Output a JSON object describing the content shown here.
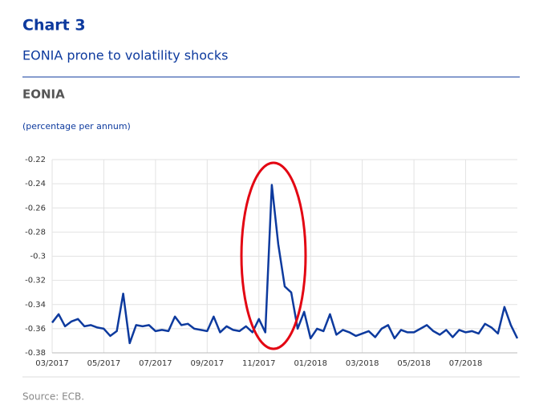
{
  "header": {
    "label": "Chart 3",
    "title": "EONIA prone to volatility shocks"
  },
  "chart_data": {
    "type": "line",
    "title": "EONIA",
    "subtitle": "(percentage per annum)",
    "categories": [
      "03/2017",
      null,
      null,
      null,
      null,
      null,
      null,
      null,
      "05/2017",
      null,
      null,
      null,
      null,
      null,
      null,
      null,
      "07/2017",
      null,
      null,
      null,
      null,
      null,
      null,
      null,
      "09/2017",
      null,
      null,
      null,
      null,
      null,
      null,
      null,
      "11/2017",
      null,
      null,
      null,
      null,
      null,
      null,
      null,
      "01/2018",
      null,
      null,
      null,
      null,
      null,
      null,
      null,
      "03/2018",
      null,
      null,
      null,
      null,
      null,
      null,
      null,
      "05/2018",
      null,
      null,
      null,
      null,
      null,
      null,
      null,
      "07/2018",
      null,
      null,
      null,
      null,
      null,
      null,
      null,
      null
    ],
    "series": [
      {
        "name": "EONIA",
        "color": "#0d3a9e",
        "values": [
          -0.355,
          -0.348,
          -0.358,
          -0.354,
          -0.352,
          -0.358,
          -0.357,
          -0.359,
          -0.36,
          -0.366,
          -0.362,
          -0.331,
          -0.372,
          -0.357,
          -0.358,
          -0.357,
          -0.362,
          -0.361,
          -0.362,
          -0.35,
          -0.357,
          -0.356,
          -0.36,
          -0.361,
          -0.362,
          -0.35,
          -0.363,
          -0.358,
          -0.361,
          -0.362,
          -0.358,
          -0.363,
          -0.352,
          -0.363,
          -0.241,
          -0.29,
          -0.325,
          -0.33,
          -0.36,
          -0.346,
          -0.368,
          -0.36,
          -0.362,
          -0.348,
          -0.365,
          -0.361,
          -0.363,
          -0.366,
          -0.364,
          -0.362,
          -0.367,
          -0.36,
          -0.357,
          -0.368,
          -0.361,
          -0.363,
          -0.363,
          -0.36,
          -0.357,
          -0.362,
          -0.365,
          -0.361,
          -0.367,
          -0.361,
          -0.363,
          -0.362,
          -0.364,
          -0.356,
          -0.359,
          -0.364,
          -0.342,
          -0.357,
          -0.368
        ]
      }
    ],
    "ylim": [
      -0.38,
      -0.22
    ],
    "yticks": [
      -0.38,
      -0.36,
      -0.34,
      -0.32,
      -0.3,
      -0.28,
      -0.26,
      -0.24,
      -0.22
    ],
    "grid": true
  },
  "footer": {
    "source": "Source: ECB."
  }
}
